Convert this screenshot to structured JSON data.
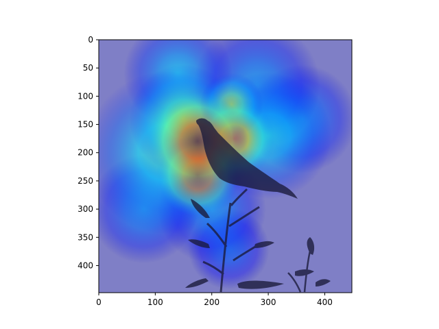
{
  "chart_data": {
    "type": "heatmap",
    "title": "",
    "xlabel": "",
    "ylabel": "",
    "subject": "bird perched on plant stem",
    "colormap": "jet",
    "overlay_alpha": 0.5,
    "xlim": [
      0,
      448
    ],
    "ylim": [
      448,
      0
    ],
    "xticks": [
      0,
      100,
      200,
      300,
      400
    ],
    "xtick_labels": [
      "0",
      "100",
      "200",
      "300",
      "400"
    ],
    "yticks": [
      0,
      50,
      100,
      150,
      200,
      250,
      300,
      350,
      400
    ],
    "ytick_labels": [
      "0",
      "50",
      "100",
      "150",
      "200",
      "250",
      "300",
      "350",
      "400"
    ],
    "hotspots": [
      {
        "x": 175,
        "y": 180,
        "radius": 55,
        "intensity": 1.0
      },
      {
        "x": 175,
        "y": 240,
        "radius": 45,
        "intensity": 0.95
      },
      {
        "x": 240,
        "y": 175,
        "radius": 45,
        "intensity": 0.85
      },
      {
        "x": 235,
        "y": 115,
        "radius": 35,
        "intensity": 0.6
      },
      {
        "x": 150,
        "y": 140,
        "radius": 60,
        "intensity": 0.55
      },
      {
        "x": 120,
        "y": 200,
        "radius": 90,
        "intensity": 0.45
      },
      {
        "x": 300,
        "y": 170,
        "radius": 70,
        "intensity": 0.4
      },
      {
        "x": 140,
        "y": 60,
        "radius": 60,
        "intensity": 0.35
      },
      {
        "x": 360,
        "y": 140,
        "radius": 60,
        "intensity": 0.3
      },
      {
        "x": 280,
        "y": 80,
        "radius": 70,
        "intensity": 0.3
      },
      {
        "x": 200,
        "y": 300,
        "radius": 60,
        "intensity": 0.3
      },
      {
        "x": 230,
        "y": 370,
        "radius": 45,
        "intensity": 0.25
      },
      {
        "x": 80,
        "y": 300,
        "radius": 60,
        "intensity": 0.3
      }
    ],
    "colors": {
      "background": "#ffffff",
      "cold": "#00007f",
      "cool": "#0080ff",
      "neutral": "#7fff7f",
      "warm": "#ffff00",
      "hot": "#ff0000",
      "silhouette": "#1a1a3a",
      "axis": "#000000"
    }
  }
}
